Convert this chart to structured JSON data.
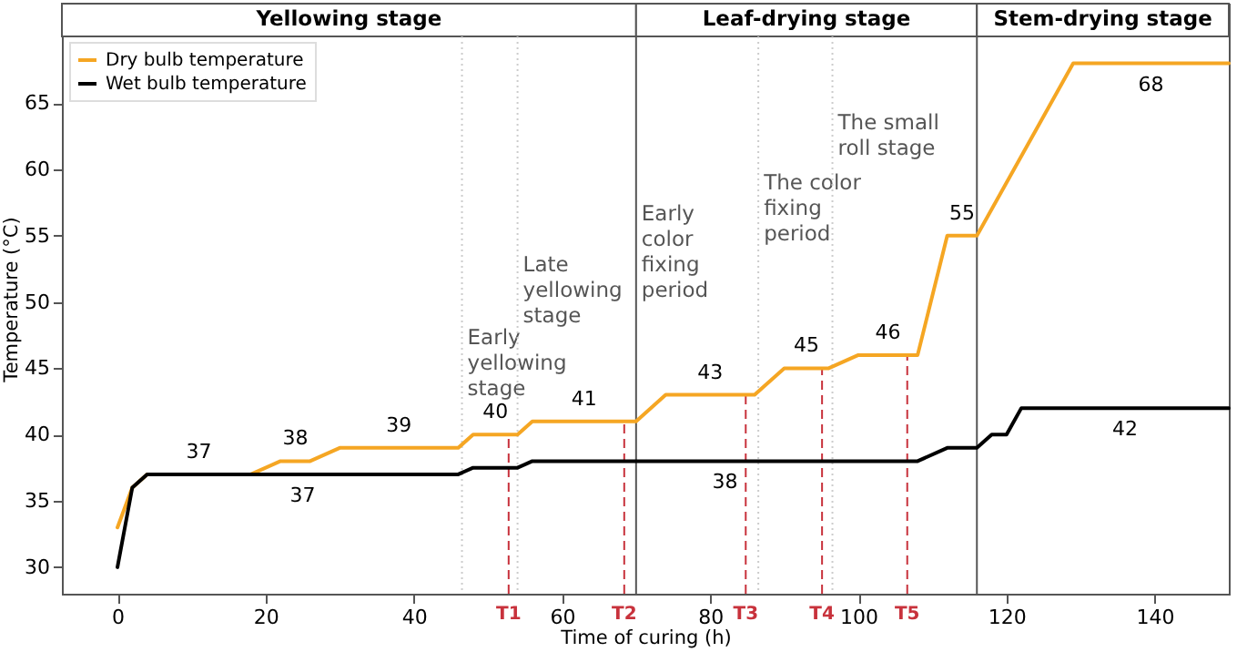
{
  "chart_data": {
    "type": "line",
    "xlabel": "Time of curing (h)",
    "ylabel": "Temperature (°C)",
    "xlim": [
      -7.5,
      150
    ],
    "ylim": [
      28,
      72.5
    ],
    "xticks": [
      0,
      20,
      40,
      60,
      80,
      100,
      120,
      140
    ],
    "yticks": [
      30,
      35,
      40,
      45,
      50,
      55,
      60,
      65
    ],
    "grid": false,
    "legend": "top left",
    "line_style": "solid",
    "marker": "none",
    "series": [
      {
        "name": "Dry bulb temperature",
        "color": "#f5a623",
        "x": [
          0,
          2,
          4,
          11,
          18,
          22,
          24,
          26,
          30,
          38,
          46,
          48,
          51,
          54,
          56,
          63,
          70,
          74,
          80,
          86,
          90,
          93,
          96,
          100,
          104,
          108,
          112,
          114,
          116,
          129,
          139.5,
          150
        ],
        "values": [
          33,
          36,
          37,
          37,
          37,
          38,
          38,
          38,
          39,
          39,
          39,
          40,
          40,
          40,
          41,
          41,
          41,
          43,
          43,
          43,
          45,
          45,
          45,
          46,
          46,
          46,
          55,
          55,
          55,
          68,
          68,
          68
        ],
        "value_labels": [
          null,
          null,
          null,
          "37",
          null,
          null,
          "38",
          null,
          null,
          "39",
          null,
          null,
          "40",
          null,
          null,
          "41",
          null,
          null,
          "43",
          null,
          null,
          "45",
          null,
          null,
          "46",
          null,
          null,
          "55",
          null,
          null,
          "68",
          null
        ]
      },
      {
        "name": "Wet bulb temperature",
        "color": "#000000",
        "x": [
          0,
          2,
          4,
          25,
          46,
          48,
          54,
          56,
          82,
          108,
          112,
          116,
          118,
          120,
          122,
          136,
          150
        ],
        "values": [
          30,
          36,
          37,
          37,
          37,
          37.5,
          37.5,
          38,
          38,
          38,
          39,
          39,
          40,
          40,
          42,
          42,
          42
        ],
        "value_labels": [
          null,
          null,
          null,
          "37",
          null,
          null,
          null,
          null,
          "38",
          null,
          null,
          null,
          null,
          null,
          null,
          "42",
          null
        ]
      }
    ],
    "ref_lines": [
      {
        "axis": "x",
        "value": 46.5,
        "label": "Early yellowing stage",
        "color": "#cccccc",
        "line_style": "dotted"
      },
      {
        "axis": "x",
        "value": 54,
        "label": "Late yellowing stage",
        "color": "#cccccc",
        "line_style": "dotted"
      },
      {
        "axis": "x",
        "value": 70,
        "label": "Early color fixing period",
        "color": "#555555",
        "line_style": "solid"
      },
      {
        "axis": "x",
        "value": 86.5,
        "label": "The color fixing period",
        "color": "#cccccc",
        "line_style": "dotted"
      },
      {
        "axis": "x",
        "value": 96.5,
        "label": "The small roll stage",
        "color": "#cccccc",
        "line_style": "dotted"
      },
      {
        "axis": "x",
        "value": 116,
        "color": "#555555",
        "line_style": "solid"
      },
      {
        "axis": "x",
        "value": 52.8,
        "label": "T1",
        "color": "#c8323c",
        "line_style": "dashed"
      },
      {
        "axis": "x",
        "value": 68.4,
        "label": "T2",
        "color": "#c8323c",
        "line_style": "dashed"
      },
      {
        "axis": "x",
        "value": 84.8,
        "label": "T3",
        "color": "#c8323c",
        "line_style": "dashed"
      },
      {
        "axis": "x",
        "value": 95.1,
        "label": "T4",
        "color": "#c8323c",
        "line_style": "dashed"
      },
      {
        "axis": "x",
        "value": 106.6,
        "label": "T5",
        "color": "#c8323c",
        "line_style": "dashed"
      }
    ],
    "bands": [
      {
        "axis": "x",
        "from": -7.5,
        "to": 70,
        "label": "Yellowing stage",
        "color": "#ffffff"
      },
      {
        "axis": "x",
        "from": 70,
        "to": 116,
        "label": "Leaf-drying stage",
        "color": "#ffffff"
      },
      {
        "axis": "x",
        "from": 116,
        "to": 150,
        "label": "Stem-drying stage",
        "color": "#ffffff"
      }
    ]
  }
}
